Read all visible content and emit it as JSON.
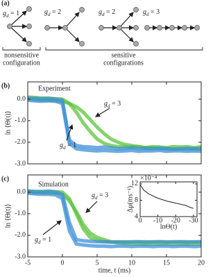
{
  "diagram": {
    "panel_label": "(a)",
    "graphs": [
      {
        "base": "g",
        "sub": "d",
        "text": " = 1"
      },
      {
        "base": "g",
        "sub": "d",
        "text": " = 2"
      },
      {
        "base": "g",
        "sub": "d",
        "text": " = 2"
      },
      {
        "base": "g",
        "sub": "d",
        "text": " = 3"
      }
    ],
    "groups": [
      [
        "nonsensitive",
        "configuration"
      ],
      [
        "sensitive",
        "configurations"
      ]
    ]
  },
  "chart_data": [
    {
      "type": "line",
      "panel_label": "(b)",
      "label": "Experiment",
      "ylabel": "ln ⟨Θ(t)⟩",
      "x": [
        -5,
        -4,
        -3,
        -2,
        -1,
        0,
        1,
        2,
        3,
        4,
        5,
        6,
        7,
        8,
        9,
        10,
        11,
        12,
        13,
        14,
        15,
        16,
        17,
        18,
        19,
        20
      ],
      "series": [
        {
          "color": "#5cc43c",
          "values": [
            0.1,
            0.08,
            0.05,
            0.05,
            0.02,
            0,
            -0.2,
            -0.6,
            -1.1,
            -1.5,
            -1.85,
            -2.05,
            -2.15,
            -2.2,
            -2.2,
            -2.22,
            -2.2,
            -2.25,
            -2.2,
            -2.22,
            -2.25,
            -2.2,
            -2.22,
            -2.2,
            -2.25,
            -2.2
          ]
        },
        {
          "color": "#5cc43c",
          "values": [
            0,
            -0.02,
            -0.05,
            -0.05,
            -0.08,
            -0.1,
            -0.2,
            -0.35,
            -0.6,
            -0.95,
            -1.3,
            -1.6,
            -1.85,
            -2,
            -2.1,
            -2.15,
            -2.2,
            -2.25,
            -2.25,
            -2.3,
            -2.28,
            -2.3,
            -2.3,
            -2.32,
            -2.3,
            -2.3
          ]
        },
        {
          "color": "#3d8fd8",
          "values": [
            0.05,
            0.04,
            0.02,
            0.03,
            0,
            -0.05,
            -1.9,
            -2.15,
            -2.2,
            -2.22,
            -2.25,
            -2.22,
            -2.25,
            -2.3,
            -2.28,
            -2.25,
            -2.3,
            -2.28,
            -2.3,
            -2.27,
            -2.3,
            -2.32,
            -2.3,
            -2.28,
            -2.3,
            -2.3
          ]
        },
        {
          "color": "#3d8fd8",
          "values": [
            -0.05,
            -0.08,
            -0.1,
            -0.08,
            -0.1,
            -0.2,
            -2.05,
            -2.3,
            -2.35,
            -2.38,
            -2.4,
            -2.38,
            -2.4,
            -2.42,
            -2.4,
            -2.38,
            -2.42,
            -2.4,
            -2.4,
            -2.38,
            -2.42,
            -2.4,
            -2.4,
            -2.42,
            -2.4,
            -2.42
          ]
        }
      ],
      "annotations": [
        {
          "base": "g",
          "sub": "d",
          "text": " = 3"
        },
        {
          "base": "g",
          "sub": "d",
          "text": " = 1"
        }
      ],
      "xlim": [
        -5,
        20
      ],
      "xticks": [
        -5,
        0,
        5,
        10,
        15,
        20
      ],
      "ylim": [
        -3,
        0.8
      ],
      "yticks": [
        {
          "value": 0,
          "label": "0.0"
        },
        {
          "value": -1,
          "label": "-1.0"
        },
        {
          "value": -2,
          "label": "-2.0"
        },
        {
          "value": -3,
          "label": "-3.0"
        }
      ]
    },
    {
      "type": "line",
      "panel_label": "(c)",
      "label": "Simulation",
      "ylabel": "ln ⟨Θ(t)⟩",
      "xlabel": "time, t (ms)",
      "x": [
        -5,
        -4,
        -3,
        -2,
        -1,
        0,
        1,
        2,
        3,
        4,
        5,
        6,
        7,
        8,
        9,
        10,
        11,
        12,
        13,
        14,
        15,
        16,
        17,
        18,
        19,
        20
      ],
      "series": [
        {
          "color": "#5cc43c",
          "values": [
            0.05,
            0.04,
            0.03,
            0.03,
            0.02,
            0,
            -0.3,
            -1,
            -1.7,
            -2.1,
            -2.25,
            -2.3,
            -2.3,
            -2.32,
            -2.3,
            -2.32,
            -2.3,
            -2.3,
            -2.32,
            -2.3,
            -2.3,
            -2.32,
            -2.3,
            -2.3,
            -2.32,
            -2.3
          ]
        },
        {
          "color": "#5cc43c",
          "values": [
            0,
            -0.02,
            -0.03,
            -0.04,
            -0.05,
            -0.1,
            -0.4,
            -0.9,
            -1.5,
            -1.9,
            -2.1,
            -2.2,
            -2.3,
            -2.35,
            -2.38,
            -2.4,
            -2.4,
            -2.42,
            -2.4,
            -2.42,
            -2.4,
            -2.42,
            -2.4,
            -2.42,
            -2.4,
            -2.42
          ]
        },
        {
          "color": "#3d8fd8",
          "values": [
            0.05,
            0.03,
            0.02,
            0.05,
            0.02,
            -0.1,
            -1.4,
            -2.2,
            -2.25,
            -2.28,
            -2.3,
            -2.3,
            -2.32,
            -2.3,
            -2.32,
            -2.3,
            -2.3,
            -2.32,
            -2.3,
            -2.3,
            -2.32,
            -2.3,
            -2.3,
            -2.32,
            -2.3,
            -2.3
          ]
        },
        {
          "color": "#3d8fd8",
          "values": [
            -0.05,
            -0.08,
            -0.1,
            -0.1,
            -0.12,
            -0.3,
            -1.8,
            -2.4,
            -2.45,
            -2.48,
            -2.5,
            -2.5,
            -2.52,
            -2.5,
            -2.5,
            -2.52,
            -2.5,
            -2.5,
            -2.52,
            -2.5,
            -2.5,
            -2.52,
            -2.5,
            -2.5,
            -2.52,
            -2.5
          ]
        }
      ],
      "annotations": [
        {
          "base": "g",
          "sub": "d",
          "text": " = 3"
        },
        {
          "base": "g",
          "sub": "d",
          "text": " = 1"
        }
      ],
      "xlim": [
        -5,
        20
      ],
      "xticks": [
        -5,
        0,
        5,
        10,
        15,
        20
      ],
      "ylim": [
        -3,
        0.8
      ],
      "yticks": [
        {
          "value": 0,
          "label": "0.0"
        },
        {
          "value": -1,
          "label": "-1.0"
        },
        {
          "value": -2,
          "label": "-2.0"
        },
        {
          "value": -3,
          "label": "-3.0"
        }
      ]
    },
    {
      "type": "line",
      "ylabel": "Δμ(ms⁻¹)",
      "xlabel": "lnΘ(t)",
      "multiplier": "×10⁻⁴",
      "x": [
        0,
        -2,
        -5,
        -10,
        -15,
        -20,
        -25,
        -28,
        -30
      ],
      "series": [
        {
          "color": "#222222",
          "values": [
            11.8,
            10.5,
            9.5,
            8.5,
            7.8,
            7.3,
            6.8,
            6.3,
            6
          ]
        }
      ],
      "xlim": [
        0,
        -32
      ],
      "xticks": [
        0,
        -10,
        -20,
        -30
      ],
      "ylim": [
        4,
        12.5
      ],
      "yticks": [
        4,
        8,
        12
      ]
    }
  ]
}
